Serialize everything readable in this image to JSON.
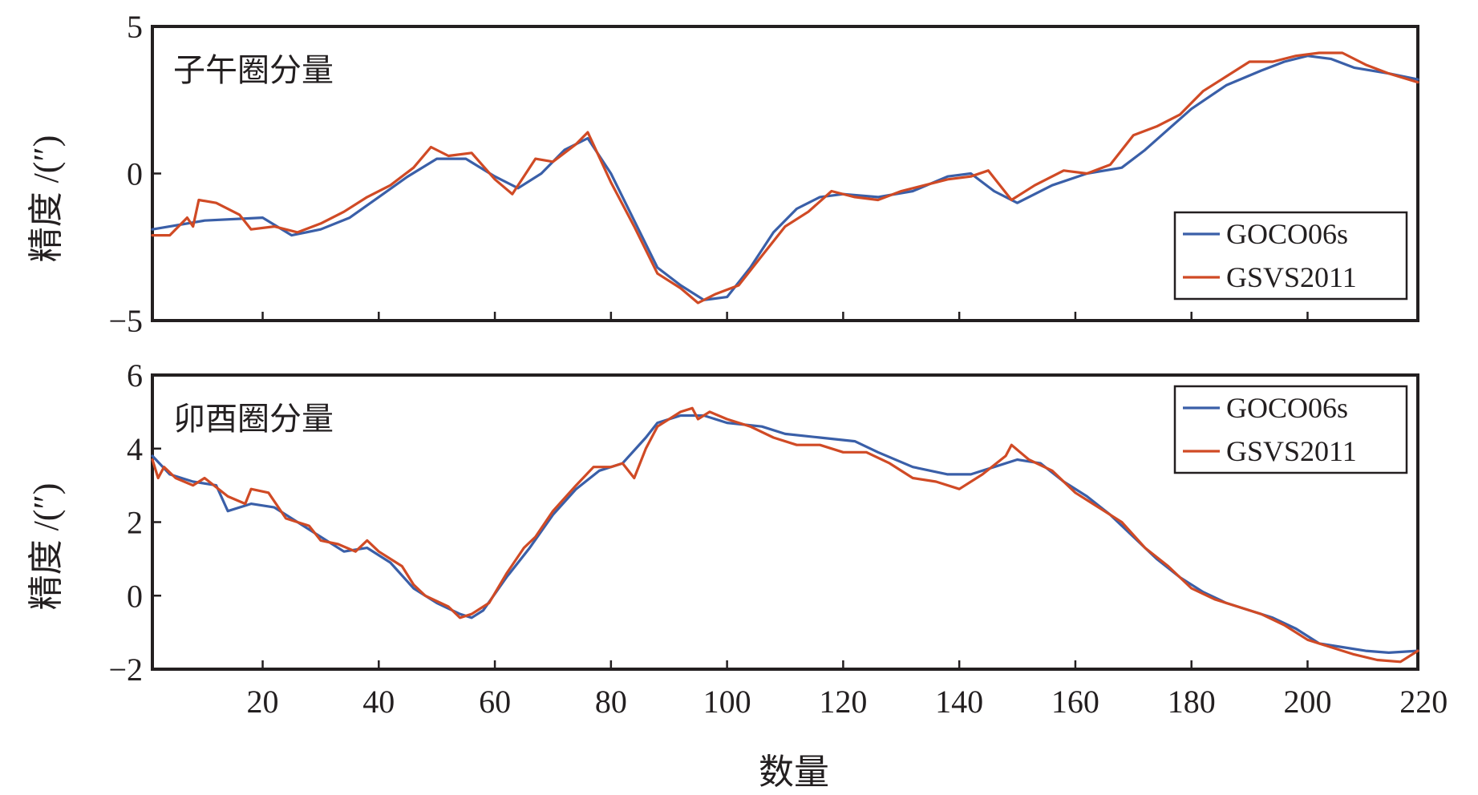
{
  "chart_data": [
    {
      "type": "line",
      "title": "子午圈分量",
      "xlabel": "",
      "ylabel": "精度 /(″)",
      "xlim": [
        1,
        219
      ],
      "ylim": [
        -5,
        5
      ],
      "xticks": [
        20,
        40,
        60,
        80,
        100,
        120,
        140,
        160,
        180,
        200,
        220
      ],
      "xtick_labels": [
        "",
        "",
        "",
        "",
        "",
        "",
        "",
        "",
        "",
        "",
        ""
      ],
      "yticks": [
        -5,
        0,
        5
      ],
      "ytick_labels": [
        "−5",
        "0",
        "5"
      ],
      "legend_position": "lower-right",
      "series": [
        {
          "name": "GOCO06s",
          "color": "#3a5fa8",
          "points": [
            [
              1,
              -1.9
            ],
            [
              10,
              -1.6
            ],
            [
              20,
              -1.5
            ],
            [
              25,
              -2.1
            ],
            [
              30,
              -1.9
            ],
            [
              35,
              -1.5
            ],
            [
              40,
              -0.8
            ],
            [
              45,
              -0.1
            ],
            [
              50,
              0.5
            ],
            [
              55,
              0.5
            ],
            [
              60,
              -0.1
            ],
            [
              64,
              -0.5
            ],
            [
              68,
              0.0
            ],
            [
              72,
              0.8
            ],
            [
              76,
              1.2
            ],
            [
              80,
              0.0
            ],
            [
              84,
              -1.6
            ],
            [
              88,
              -3.2
            ],
            [
              92,
              -3.8
            ],
            [
              96,
              -4.3
            ],
            [
              100,
              -4.2
            ],
            [
              104,
              -3.2
            ],
            [
              108,
              -2.0
            ],
            [
              112,
              -1.2
            ],
            [
              116,
              -0.8
            ],
            [
              120,
              -0.7
            ],
            [
              126,
              -0.8
            ],
            [
              132,
              -0.6
            ],
            [
              138,
              -0.1
            ],
            [
              142,
              0.0
            ],
            [
              146,
              -0.6
            ],
            [
              150,
              -1.0
            ],
            [
              156,
              -0.4
            ],
            [
              162,
              0.0
            ],
            [
              168,
              0.2
            ],
            [
              172,
              0.8
            ],
            [
              176,
              1.5
            ],
            [
              180,
              2.2
            ],
            [
              186,
              3.0
            ],
            [
              192,
              3.5
            ],
            [
              196,
              3.8
            ],
            [
              200,
              4.0
            ],
            [
              204,
              3.9
            ],
            [
              208,
              3.6
            ],
            [
              214,
              3.4
            ],
            [
              219,
              3.2
            ]
          ]
        },
        {
          "name": "GSVS2011",
          "color": "#d04a25",
          "points": [
            [
              1,
              -2.1
            ],
            [
              4,
              -2.1
            ],
            [
              7,
              -1.5
            ],
            [
              8,
              -1.8
            ],
            [
              9,
              -0.9
            ],
            [
              12,
              -1.0
            ],
            [
              16,
              -1.4
            ],
            [
              18,
              -1.9
            ],
            [
              22,
              -1.8
            ],
            [
              26,
              -2.0
            ],
            [
              30,
              -1.7
            ],
            [
              34,
              -1.3
            ],
            [
              38,
              -0.8
            ],
            [
              42,
              -0.4
            ],
            [
              46,
              0.2
            ],
            [
              49,
              0.9
            ],
            [
              52,
              0.6
            ],
            [
              56,
              0.7
            ],
            [
              60,
              -0.2
            ],
            [
              63,
              -0.7
            ],
            [
              67,
              0.5
            ],
            [
              70,
              0.4
            ],
            [
              74,
              1.0
            ],
            [
              76,
              1.4
            ],
            [
              80,
              -0.3
            ],
            [
              84,
              -1.8
            ],
            [
              88,
              -3.4
            ],
            [
              92,
              -3.9
            ],
            [
              95,
              -4.4
            ],
            [
              98,
              -4.1
            ],
            [
              102,
              -3.8
            ],
            [
              106,
              -2.8
            ],
            [
              110,
              -1.8
            ],
            [
              114,
              -1.3
            ],
            [
              118,
              -0.6
            ],
            [
              122,
              -0.8
            ],
            [
              126,
              -0.9
            ],
            [
              130,
              -0.6
            ],
            [
              134,
              -0.4
            ],
            [
              138,
              -0.2
            ],
            [
              142,
              -0.1
            ],
            [
              145,
              0.1
            ],
            [
              149,
              -0.9
            ],
            [
              153,
              -0.4
            ],
            [
              158,
              0.1
            ],
            [
              162,
              0.0
            ],
            [
              166,
              0.3
            ],
            [
              170,
              1.3
            ],
            [
              174,
              1.6
            ],
            [
              178,
              2.0
            ],
            [
              182,
              2.8
            ],
            [
              186,
              3.3
            ],
            [
              190,
              3.8
            ],
            [
              194,
              3.8
            ],
            [
              198,
              4.0
            ],
            [
              202,
              4.1
            ],
            [
              206,
              4.1
            ],
            [
              210,
              3.7
            ],
            [
              214,
              3.4
            ],
            [
              219,
              3.1
            ]
          ]
        }
      ]
    },
    {
      "type": "line",
      "title": "卯酉圈分量",
      "xlabel": "数量",
      "ylabel": "精度 /(″)",
      "xlim": [
        1,
        219
      ],
      "ylim": [
        -2,
        6
      ],
      "xticks": [
        20,
        40,
        60,
        80,
        100,
        120,
        140,
        160,
        180,
        200,
        220
      ],
      "xtick_labels": [
        "20",
        "40",
        "60",
        "80",
        "100",
        "120",
        "140",
        "160",
        "180",
        "200",
        "220"
      ],
      "yticks": [
        -2,
        0,
        2,
        4,
        6
      ],
      "ytick_labels": [
        "−2",
        "0",
        "2",
        "4",
        "6"
      ],
      "legend_position": "upper-right",
      "series": [
        {
          "name": "GOCO06s",
          "color": "#3a5fa8",
          "points": [
            [
              1,
              3.8
            ],
            [
              4,
              3.3
            ],
            [
              8,
              3.1
            ],
            [
              12,
              3.0
            ],
            [
              14,
              2.3
            ],
            [
              18,
              2.5
            ],
            [
              22,
              2.4
            ],
            [
              26,
              2.0
            ],
            [
              30,
              1.6
            ],
            [
              34,
              1.2
            ],
            [
              38,
              1.3
            ],
            [
              42,
              0.9
            ],
            [
              46,
              0.2
            ],
            [
              50,
              -0.2
            ],
            [
              54,
              -0.5
            ],
            [
              56,
              -0.6
            ],
            [
              58,
              -0.4
            ],
            [
              62,
              0.5
            ],
            [
              66,
              1.3
            ],
            [
              70,
              2.2
            ],
            [
              74,
              2.9
            ],
            [
              78,
              3.4
            ],
            [
              82,
              3.6
            ],
            [
              86,
              4.3
            ],
            [
              88,
              4.7
            ],
            [
              92,
              4.9
            ],
            [
              96,
              4.9
            ],
            [
              100,
              4.7
            ],
            [
              106,
              4.6
            ],
            [
              110,
              4.4
            ],
            [
              116,
              4.3
            ],
            [
              122,
              4.2
            ],
            [
              126,
              3.9
            ],
            [
              132,
              3.5
            ],
            [
              138,
              3.3
            ],
            [
              142,
              3.3
            ],
            [
              146,
              3.5
            ],
            [
              150,
              3.7
            ],
            [
              154,
              3.6
            ],
            [
              158,
              3.1
            ],
            [
              162,
              2.7
            ],
            [
              166,
              2.2
            ],
            [
              170,
              1.6
            ],
            [
              174,
              1.0
            ],
            [
              178,
              0.5
            ],
            [
              182,
              0.1
            ],
            [
              186,
              -0.2
            ],
            [
              190,
              -0.4
            ],
            [
              194,
              -0.6
            ],
            [
              198,
              -0.9
            ],
            [
              202,
              -1.3
            ],
            [
              206,
              -1.4
            ],
            [
              210,
              -1.5
            ],
            [
              214,
              -1.55
            ],
            [
              219,
              -1.5
            ]
          ]
        },
        {
          "name": "GSVS2011",
          "color": "#d04a25",
          "points": [
            [
              1,
              3.7
            ],
            [
              2,
              3.2
            ],
            [
              3,
              3.5
            ],
            [
              5,
              3.2
            ],
            [
              8,
              3.0
            ],
            [
              10,
              3.2
            ],
            [
              14,
              2.7
            ],
            [
              17,
              2.5
            ],
            [
              18,
              2.9
            ],
            [
              21,
              2.8
            ],
            [
              24,
              2.1
            ],
            [
              28,
              1.9
            ],
            [
              30,
              1.5
            ],
            [
              33,
              1.4
            ],
            [
              36,
              1.2
            ],
            [
              38,
              1.5
            ],
            [
              40,
              1.2
            ],
            [
              42,
              1.0
            ],
            [
              44,
              0.8
            ],
            [
              46,
              0.3
            ],
            [
              48,
              0.0
            ],
            [
              52,
              -0.3
            ],
            [
              54,
              -0.6
            ],
            [
              56,
              -0.5
            ],
            [
              59,
              -0.2
            ],
            [
              62,
              0.6
            ],
            [
              65,
              1.3
            ],
            [
              67,
              1.6
            ],
            [
              70,
              2.3
            ],
            [
              74,
              3.0
            ],
            [
              77,
              3.5
            ],
            [
              80,
              3.5
            ],
            [
              82,
              3.6
            ],
            [
              84,
              3.2
            ],
            [
              86,
              4.0
            ],
            [
              88,
              4.6
            ],
            [
              92,
              5.0
            ],
            [
              94,
              5.1
            ],
            [
              95,
              4.8
            ],
            [
              97,
              5.0
            ],
            [
              100,
              4.8
            ],
            [
              104,
              4.6
            ],
            [
              108,
              4.3
            ],
            [
              112,
              4.1
            ],
            [
              116,
              4.1
            ],
            [
              120,
              3.9
            ],
            [
              124,
              3.9
            ],
            [
              128,
              3.6
            ],
            [
              132,
              3.2
            ],
            [
              136,
              3.1
            ],
            [
              140,
              2.9
            ],
            [
              144,
              3.3
            ],
            [
              148,
              3.8
            ],
            [
              149,
              4.1
            ],
            [
              152,
              3.7
            ],
            [
              156,
              3.4
            ],
            [
              160,
              2.8
            ],
            [
              164,
              2.4
            ],
            [
              168,
              2.0
            ],
            [
              172,
              1.3
            ],
            [
              176,
              0.8
            ],
            [
              180,
              0.2
            ],
            [
              184,
              -0.1
            ],
            [
              188,
              -0.3
            ],
            [
              192,
              -0.5
            ],
            [
              196,
              -0.8
            ],
            [
              200,
              -1.2
            ],
            [
              204,
              -1.4
            ],
            [
              208,
              -1.6
            ],
            [
              212,
              -1.75
            ],
            [
              216,
              -1.8
            ],
            [
              219,
              -1.5
            ]
          ]
        }
      ]
    }
  ]
}
